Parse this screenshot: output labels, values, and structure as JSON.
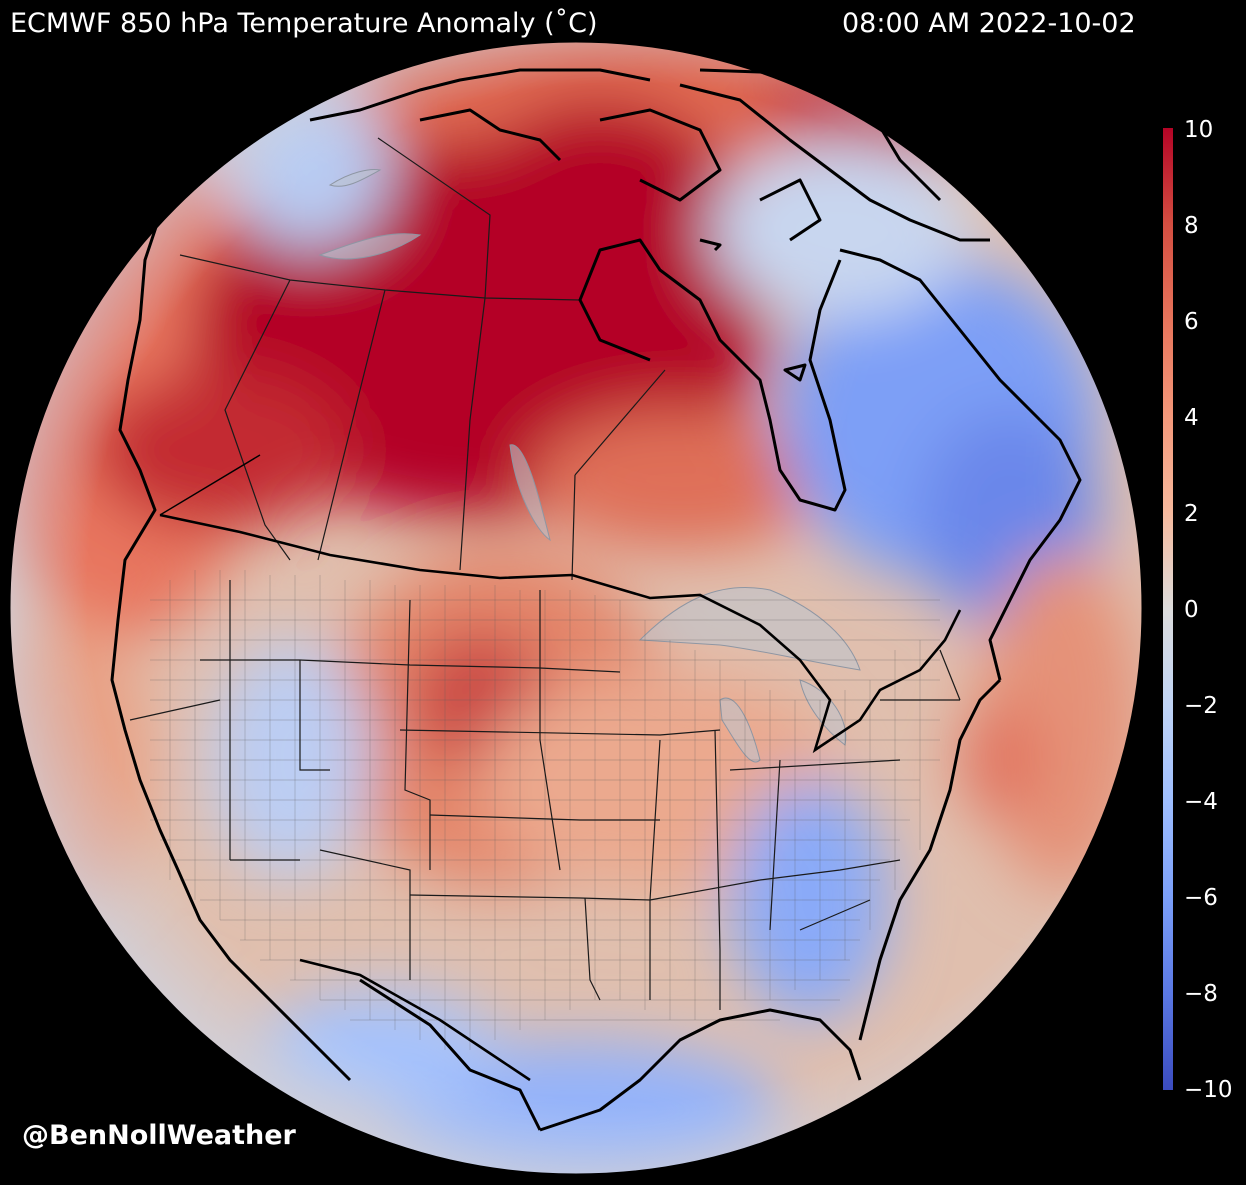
{
  "header": {
    "title": "ECMWF 850 hPa Temperature Anomaly (˚C)",
    "timestamp": "08:00 AM 2022-10-02"
  },
  "colorbar": {
    "ticks": [
      "10",
      "8",
      "6",
      "4",
      "2",
      "0",
      "−2",
      "−4",
      "−6",
      "−8",
      "−10"
    ],
    "min": -10,
    "max": 10,
    "colormap": "coolwarm",
    "colors": {
      "max": "#b40426",
      "mid": "#dddcdc",
      "min": "#3b4cc0"
    }
  },
  "map": {
    "projection": "orthographic",
    "region": "North America",
    "layers": [
      "temperature-anomaly",
      "coastlines",
      "country-borders",
      "state-province-borders",
      "county-borders",
      "lakes"
    ]
  },
  "watermark": "@BenNollWeather"
}
